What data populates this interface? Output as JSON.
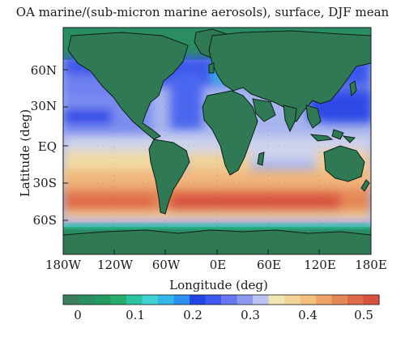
{
  "title": "OA marine/(sub-micron marine aerosols), surface, DJF mean",
  "axes": {
    "xlabel": "Longitude (deg)",
    "ylabel": "Latitude (deg)",
    "yticks": [
      "60N",
      "30N",
      "EQ",
      "30S",
      "60S"
    ],
    "xticks": [
      "180W",
      "120W",
      "60W",
      "0E",
      "60E",
      "120E",
      "180E"
    ]
  },
  "colorbar": {
    "ticks": [
      "0",
      "0.1",
      "0.2",
      "0.3",
      "0.4",
      "0.5"
    ],
    "range": [
      0,
      0.55
    ],
    "colors": [
      "#3c7e5f",
      "#2a8d63",
      "#239a5e",
      "#26ad6d",
      "#2cc3a0",
      "#40d3d2",
      "#35b6ea",
      "#2f8ff0",
      "#2345e6",
      "#3e58ee",
      "#6877f0",
      "#8c99ee",
      "#bcc3f0",
      "#efe6b6",
      "#f3d59a",
      "#f2bf7d",
      "#eea466",
      "#e58857",
      "#df6a4b",
      "#d8533f"
    ]
  },
  "map": {
    "land_color": "#2f7a55",
    "lon_range": [
      -180,
      180
    ],
    "lat_range": [
      -90,
      90
    ]
  }
}
